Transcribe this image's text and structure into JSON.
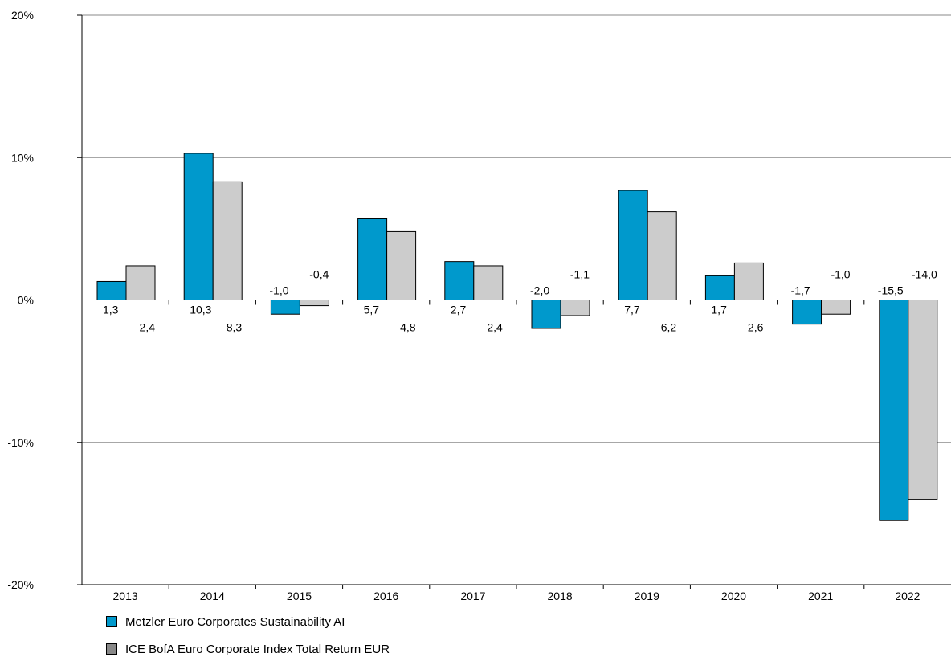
{
  "chart_data": {
    "type": "bar",
    "categories": [
      "2013",
      "2014",
      "2015",
      "2016",
      "2017",
      "2018",
      "2019",
      "2020",
      "2021",
      "2022"
    ],
    "series": [
      {
        "name": "Metzler Euro Corporates Sustainability AI",
        "values": [
          1.3,
          10.3,
          -1.0,
          5.7,
          2.7,
          -2.0,
          7.7,
          1.7,
          -1.7,
          -15.5
        ],
        "labels": [
          "1,3",
          "10,3",
          "-1,0",
          "5,7",
          "2,7",
          "-2,0",
          "7,7",
          "1,7",
          "-1,7",
          "-15,5"
        ],
        "color": "#0099cc",
        "legend_color": "#0099cc"
      },
      {
        "name": "ICE BofA Euro Corporate Index Total Return EUR",
        "values": [
          2.4,
          8.3,
          -0.4,
          4.8,
          2.4,
          -1.1,
          6.2,
          2.6,
          -1.0,
          -14.0
        ],
        "labels": [
          "2,4",
          "8,3",
          "-0,4",
          "4,8",
          "2,4",
          "-1,1",
          "6,2",
          "2,6",
          "-1,0",
          "-14,0"
        ],
        "color": "#cccccc",
        "legend_color": "#888888"
      }
    ],
    "y_ticks": [
      20,
      10,
      0,
      -10,
      -20
    ],
    "y_tick_labels": [
      "20%",
      "10%",
      "0%",
      "-10%",
      "-20%"
    ],
    "ylim": [
      -20,
      20
    ],
    "grid": true,
    "legend_position": "bottom-left"
  }
}
